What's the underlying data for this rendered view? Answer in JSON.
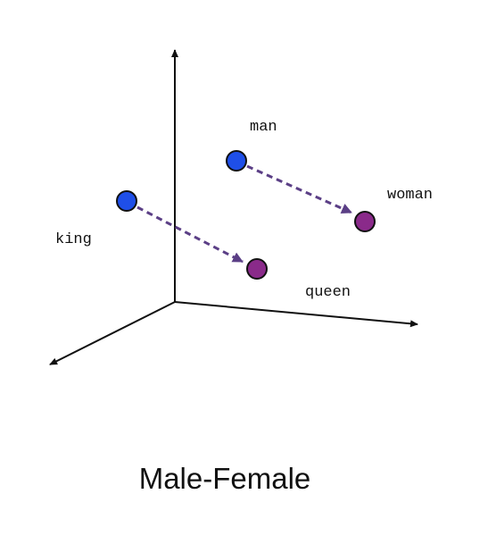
{
  "caption": "Male-Female",
  "words": {
    "man": "man",
    "woman": "woman",
    "king": "king",
    "queen": "queen"
  },
  "colors": {
    "male_point": "#1f4fe8",
    "female_point": "#8a2a8a",
    "arrow": "#5b3f86",
    "axis": "#111111"
  }
}
